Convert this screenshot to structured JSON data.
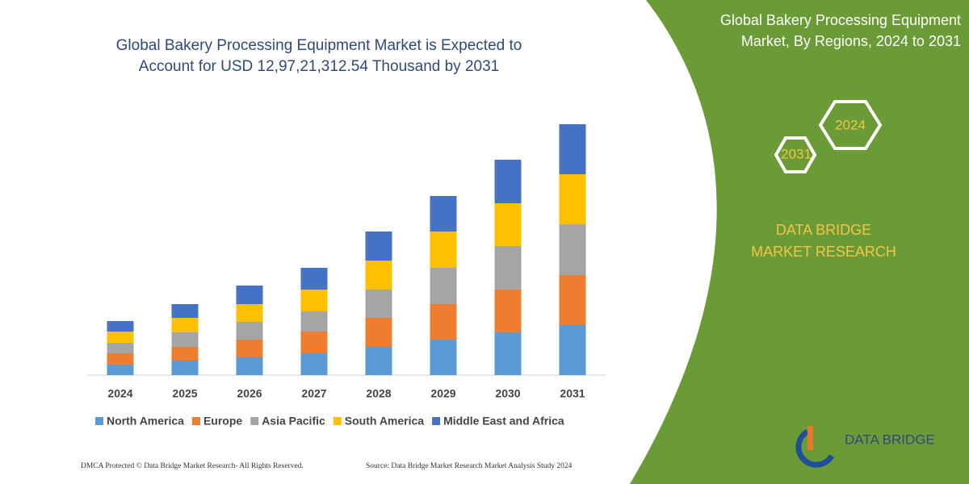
{
  "chart_data": {
    "type": "bar",
    "stacked": true,
    "title": "Global Bakery Processing Equipment Market is Expected to Account for USD 12,97,21,312.54 Thousand by 2031",
    "categories": [
      "2024",
      "2025",
      "2026",
      "2027",
      "2028",
      "2029",
      "2030",
      "2031"
    ],
    "series": [
      {
        "name": "North America",
        "color": "#5b9bd5",
        "values": [
          13,
          18,
          22,
          27,
          35,
          44,
          53,
          62
        ]
      },
      {
        "name": "Europe",
        "color": "#ed7d31",
        "values": [
          14,
          17,
          22,
          27,
          36,
          44,
          53,
          62
        ]
      },
      {
        "name": "Asia Pacific",
        "color": "#a5a5a5",
        "values": [
          13,
          18,
          22,
          25,
          35,
          45,
          54,
          63
        ]
      },
      {
        "name": "South America",
        "color": "#ffc000",
        "values": [
          14,
          18,
          22,
          27,
          36,
          45,
          53,
          62
        ]
      },
      {
        "name": "Middle East and Africa",
        "color": "#4472c4",
        "values": [
          13,
          17,
          23,
          27,
          36,
          44,
          54,
          62
        ]
      }
    ],
    "ylim": [
      0,
      320
    ],
    "legend": "bottom"
  },
  "panel": {
    "title": "Global Bakery Processing Equipment Market, By Regions, 2024 to 2031",
    "hexagons": [
      "2031",
      "2024"
    ],
    "brand": "DATA BRIDGE MARKET RESEARCH",
    "logo": "DATA BRIDGE"
  },
  "footer": {
    "left": "DMCA Protected © Data Bridge Market Research- All Rights Reserved.",
    "right": "Source: Data Bridge Market Research Market Analysis Study 2024"
  }
}
